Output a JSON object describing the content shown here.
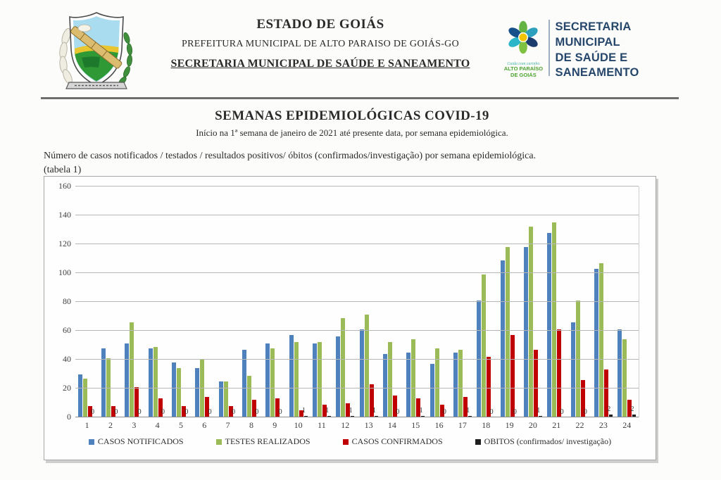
{
  "header": {
    "center": {
      "line1": "ESTADO DE GOIÁS",
      "line2": "PREFEITURA MUNICIPAL DE ALTO PARAISO DE GOIÁS-GO",
      "line3": "SECRETARIA MUNICIPAL DE SAÚDE E SANEAMENTO"
    },
    "right_logo": {
      "tagline": "Cuida com carinho",
      "city_line1": "ALTO PARAÍSO",
      "city_line2": "DE GOIÁS",
      "lines": [
        "SECRETARIA MUNICIPAL",
        "DE SAÚDE E",
        "SANEAMENTO"
      ]
    }
  },
  "titles": {
    "title": "SEMANAS EPIDEMIOLÓGICAS COVID-19",
    "subtitle": "Início na 1ª semana de janeiro de 2021 até presente data, por semana epidemiológica.",
    "description": "Número de casos notificados / testados / resultados positivos/ óbitos (confirmados/investigação) por semana epidemiológica.",
    "table_ref": "(tabela 1)"
  },
  "chart_data": {
    "type": "bar",
    "title": "",
    "xlabel": "",
    "ylabel": "",
    "ylim": [
      0,
      160
    ],
    "ytick_step": 20,
    "grid": true,
    "legend_position": "bottom",
    "categories": [
      1,
      2,
      3,
      4,
      5,
      6,
      7,
      8,
      9,
      10,
      11,
      12,
      13,
      14,
      15,
      16,
      17,
      18,
      19,
      20,
      21,
      22,
      23,
      24
    ],
    "series": [
      {
        "name": "CASOS NOTIFICADOS",
        "key": "casos-notificados",
        "color": "#4F81BD",
        "values": [
          30,
          48,
          51,
          48,
          38,
          34,
          25,
          47,
          51,
          57,
          51,
          56,
          61,
          44,
          45,
          37,
          45,
          81,
          109,
          118,
          128,
          66,
          103,
          61
        ]
      },
      {
        "name": "TESTES REALIZADOS",
        "key": "testes-realizados",
        "color": "#9BBB59",
        "values": [
          27,
          41,
          66,
          49,
          34,
          40,
          25,
          29,
          48,
          52,
          52,
          69,
          71,
          52,
          54,
          48,
          47,
          99,
          118,
          132,
          135,
          81,
          107,
          54
        ]
      },
      {
        "name": "CASOS CONFIRMADOS",
        "key": "casos-confirmados",
        "color": "#C00000",
        "values": [
          8,
          8,
          21,
          13,
          8,
          14,
          8,
          12,
          13,
          5,
          9,
          10,
          23,
          15,
          13,
          9,
          14,
          42,
          57,
          47,
          61,
          26,
          33,
          12
        ]
      },
      {
        "name": "OBITOS (confirmados/ investigação)",
        "key": "obitos",
        "color": "#1f1f1f",
        "show_labels": true,
        "values": [
          0,
          0,
          0,
          0,
          0,
          0,
          0,
          0,
          0,
          1,
          1,
          1,
          1,
          0,
          1,
          0,
          1,
          0,
          0,
          1,
          0,
          0,
          2,
          2
        ]
      }
    ]
  }
}
